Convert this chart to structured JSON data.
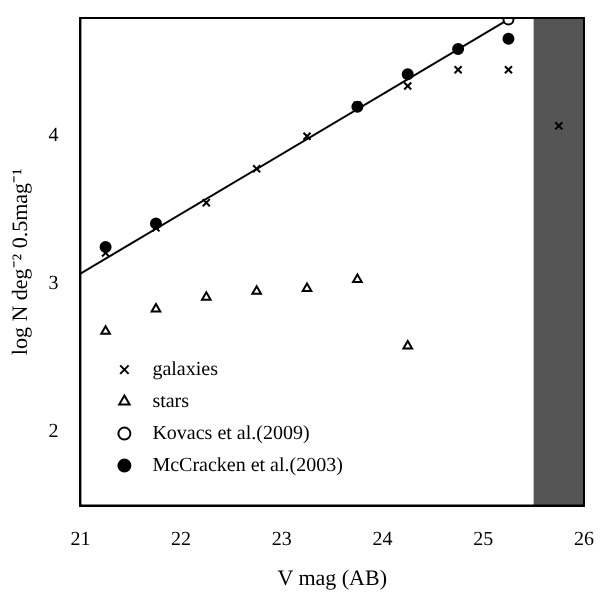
{
  "chart_data": {
    "type": "scatter",
    "xlabel": "V mag (AB)",
    "ylabel": "log N deg⁻² 0.5mag⁻¹",
    "xlim": [
      21,
      26
    ],
    "xticks": [
      21,
      22,
      23,
      24,
      25,
      26
    ],
    "ylim": [
      1.5,
      4.8
    ],
    "yticks": [
      2,
      3,
      4
    ],
    "grid": false,
    "legend": "bottom left",
    "series": [
      {
        "name": "galaxies",
        "color": "#000000",
        "marker": "cross",
        "x": [
          21.25,
          21.75,
          22.25,
          22.75,
          23.25,
          23.75,
          24.25,
          24.75,
          25.25,
          25.75
        ],
        "values": [
          3.21,
          3.38,
          3.55,
          3.78,
          4.0,
          4.21,
          4.34,
          4.45,
          4.45,
          4.07
        ]
      },
      {
        "name": "stars",
        "color": "#000000",
        "marker": "triangle",
        "x": [
          21.25,
          21.75,
          22.25,
          22.75,
          23.25,
          23.75,
          24.25
        ],
        "values": [
          2.68,
          2.83,
          2.91,
          2.95,
          2.97,
          3.03,
          2.58
        ]
      },
      {
        "name": "Kovacs et al.(2009)",
        "color": "#ffffff",
        "marker": "circle",
        "x": [
          25.25
        ],
        "values": [
          4.79
        ]
      },
      {
        "name": "McCracken et al.(2003)",
        "color": "#000000",
        "marker": "circle",
        "x": [
          21.25,
          21.75,
          22.25,
          22.75,
          23.25,
          23.75,
          24.25,
          24.75,
          25.25
        ],
        "values": [
          3.25,
          3.41,
          null,
          null,
          null,
          4.2,
          4.42,
          4.59,
          4.66
        ]
      },
      {
        "type": "line",
        "color": "#000000",
        "marker": "none",
        "line_style": "solid",
        "x": [
          21,
          25.25
        ],
        "values": [
          3.07,
          4.79
        ]
      }
    ],
    "bands": [
      {
        "axis": "x",
        "from": 25.5,
        "to": 26,
        "color": "#555555"
      }
    ]
  }
}
